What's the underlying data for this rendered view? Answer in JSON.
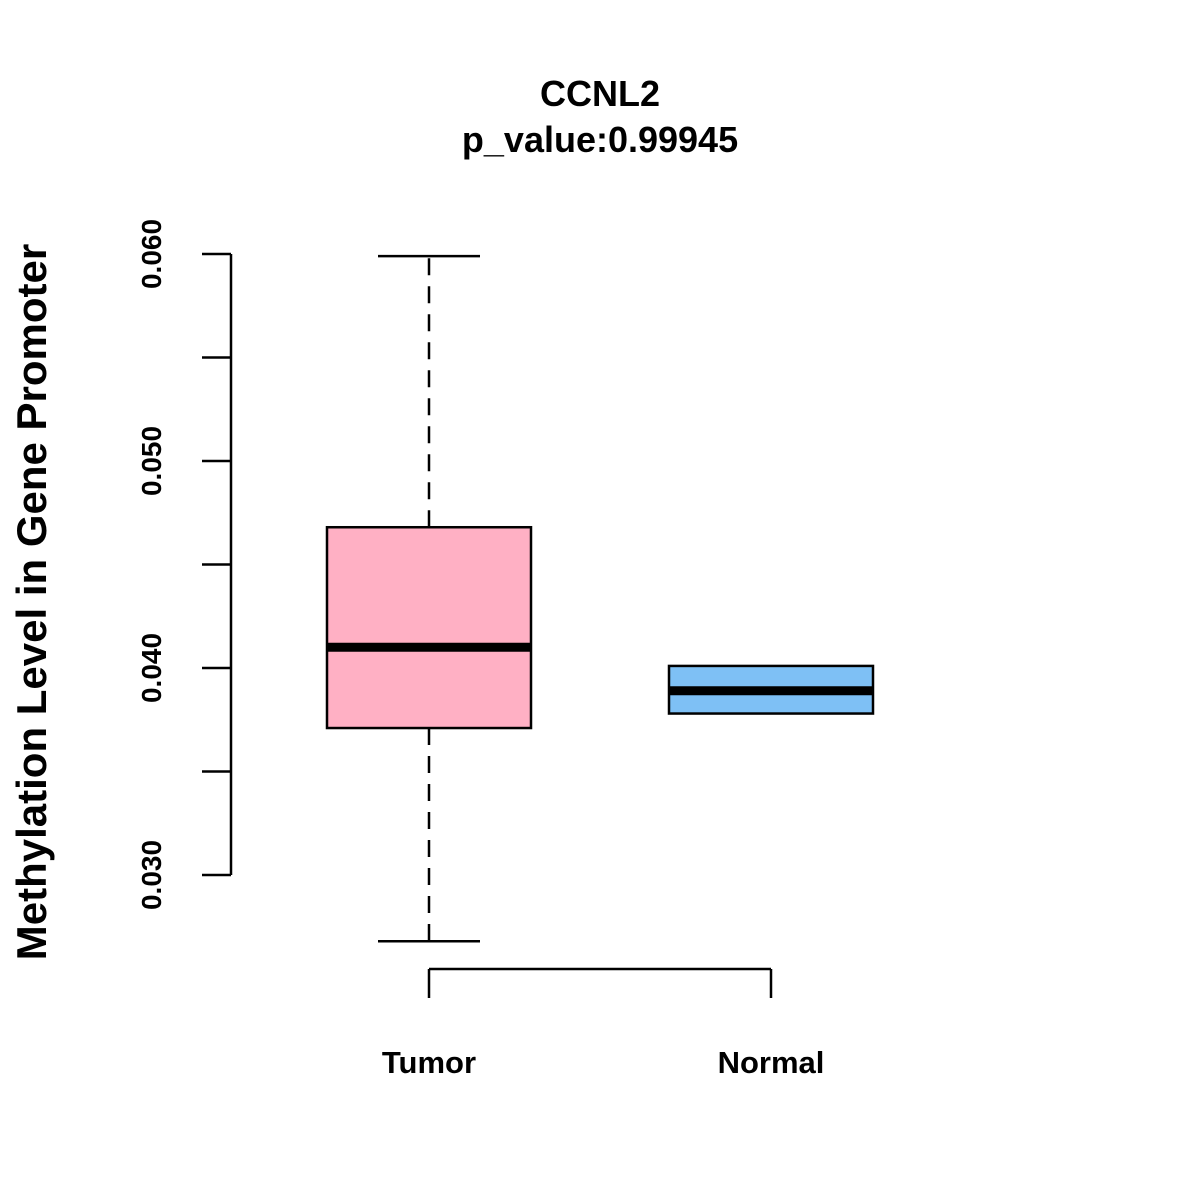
{
  "chart_data": {
    "type": "boxplot",
    "title": "CCNL2",
    "subtitle": "p_value:0.99945",
    "xlabel": "",
    "ylabel": "Methylation Level in Gene Promoter",
    "ylim": [
      0.03,
      0.06
    ],
    "y_ticks": [
      0.03,
      0.035,
      0.04,
      0.045,
      0.05,
      0.055,
      0.06
    ],
    "y_tick_labels": [
      "0.030",
      "",
      "0.040",
      "",
      "0.050",
      "",
      "0.060"
    ],
    "categories": [
      "Tumor",
      "Normal"
    ],
    "series": [
      {
        "name": "Tumor",
        "color": "#FFB0C4",
        "whisker_low": 0.0268,
        "q1": 0.0371,
        "median": 0.041,
        "q3": 0.0468,
        "whisker_high": 0.0599
      },
      {
        "name": "Normal",
        "color": "#7EC0F5",
        "whisker_low": 0.0378,
        "q1": 0.0378,
        "median": 0.0389,
        "q3": 0.0401,
        "whisker_high": 0.0401
      }
    ]
  }
}
